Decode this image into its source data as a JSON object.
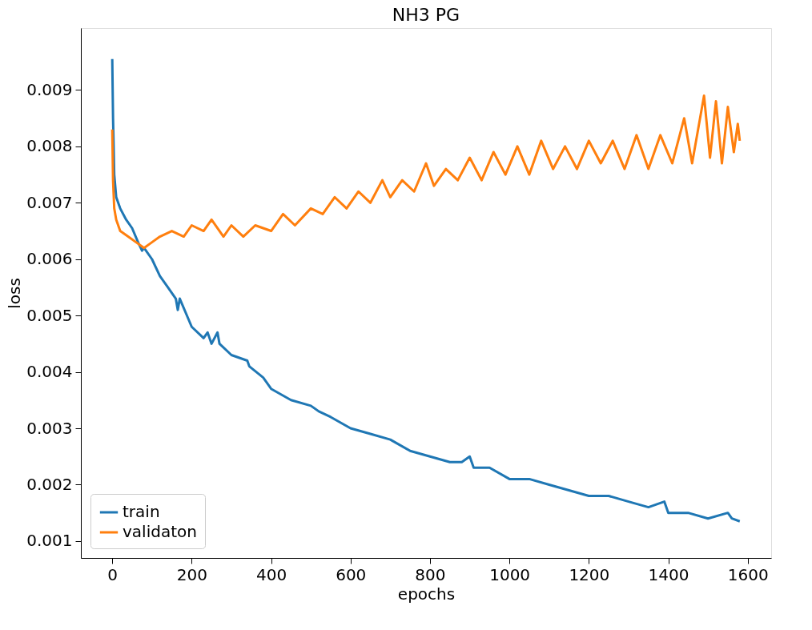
{
  "chart_data": {
    "type": "line",
    "title": "NH3 PG",
    "xlabel": "epochs",
    "ylabel": "loss",
    "xlim": [
      -79,
      1659
    ],
    "ylim": [
      0.0007,
      0.0101
    ],
    "xticks": [
      0,
      200,
      400,
      600,
      800,
      1000,
      1200,
      1400,
      1600
    ],
    "yticks": [
      0.001,
      0.002,
      0.003,
      0.004,
      0.005,
      0.006,
      0.007,
      0.008,
      0.009
    ],
    "grid": false,
    "legend": "bottom left",
    "line_style": "solid",
    "marker": "none",
    "series": [
      {
        "name": "train",
        "color": "#1f77b4",
        "x": [
          0,
          2,
          5,
          10,
          20,
          35,
          50,
          65,
          75,
          80,
          100,
          120,
          140,
          160,
          165,
          170,
          200,
          230,
          240,
          250,
          265,
          270,
          300,
          340,
          345,
          380,
          400,
          450,
          500,
          520,
          550,
          600,
          650,
          700,
          750,
          800,
          850,
          880,
          900,
          910,
          950,
          1000,
          1050,
          1100,
          1150,
          1200,
          1250,
          1300,
          1350,
          1390,
          1400,
          1450,
          1500,
          1550,
          1560,
          1580
        ],
        "values": [
          0.00955,
          0.0085,
          0.0075,
          0.0071,
          0.0069,
          0.0067,
          0.00655,
          0.0063,
          0.00615,
          0.0062,
          0.006,
          0.0057,
          0.0055,
          0.0053,
          0.0051,
          0.0053,
          0.0048,
          0.0046,
          0.0047,
          0.0045,
          0.0047,
          0.0045,
          0.0043,
          0.0042,
          0.0041,
          0.0039,
          0.0037,
          0.0035,
          0.0034,
          0.0033,
          0.0032,
          0.003,
          0.0029,
          0.0028,
          0.0026,
          0.0025,
          0.0024,
          0.0024,
          0.0025,
          0.0023,
          0.0023,
          0.0021,
          0.0021,
          0.002,
          0.0019,
          0.0018,
          0.0018,
          0.0017,
          0.0016,
          0.0017,
          0.0015,
          0.0015,
          0.0014,
          0.0015,
          0.0014,
          0.00135
        ]
      },
      {
        "name": "validaton",
        "color": "#ff7f0e",
        "x": [
          0,
          2,
          5,
          10,
          20,
          40,
          60,
          80,
          100,
          120,
          150,
          180,
          200,
          230,
          250,
          280,
          300,
          330,
          360,
          400,
          430,
          460,
          500,
          530,
          560,
          590,
          620,
          650,
          680,
          700,
          730,
          760,
          790,
          810,
          840,
          870,
          900,
          930,
          960,
          990,
          1020,
          1050,
          1080,
          1110,
          1140,
          1170,
          1200,
          1230,
          1260,
          1290,
          1320,
          1350,
          1380,
          1410,
          1440,
          1460,
          1490,
          1505,
          1520,
          1535,
          1550,
          1565,
          1575,
          1580
        ],
        "values": [
          0.0083,
          0.0074,
          0.0069,
          0.0067,
          0.0065,
          0.0064,
          0.0063,
          0.0062,
          0.0063,
          0.0064,
          0.0065,
          0.0064,
          0.0066,
          0.0065,
          0.0067,
          0.0064,
          0.0066,
          0.0064,
          0.0066,
          0.0065,
          0.0068,
          0.0066,
          0.0069,
          0.0068,
          0.0071,
          0.0069,
          0.0072,
          0.007,
          0.0074,
          0.0071,
          0.0074,
          0.0072,
          0.0077,
          0.0073,
          0.0076,
          0.0074,
          0.0078,
          0.0074,
          0.0079,
          0.0075,
          0.008,
          0.0075,
          0.0081,
          0.0076,
          0.008,
          0.0076,
          0.0081,
          0.0077,
          0.0081,
          0.0076,
          0.0082,
          0.0076,
          0.0082,
          0.0077,
          0.0085,
          0.0077,
          0.0089,
          0.0078,
          0.0088,
          0.0077,
          0.0087,
          0.0079,
          0.0084,
          0.0081
        ]
      }
    ]
  }
}
